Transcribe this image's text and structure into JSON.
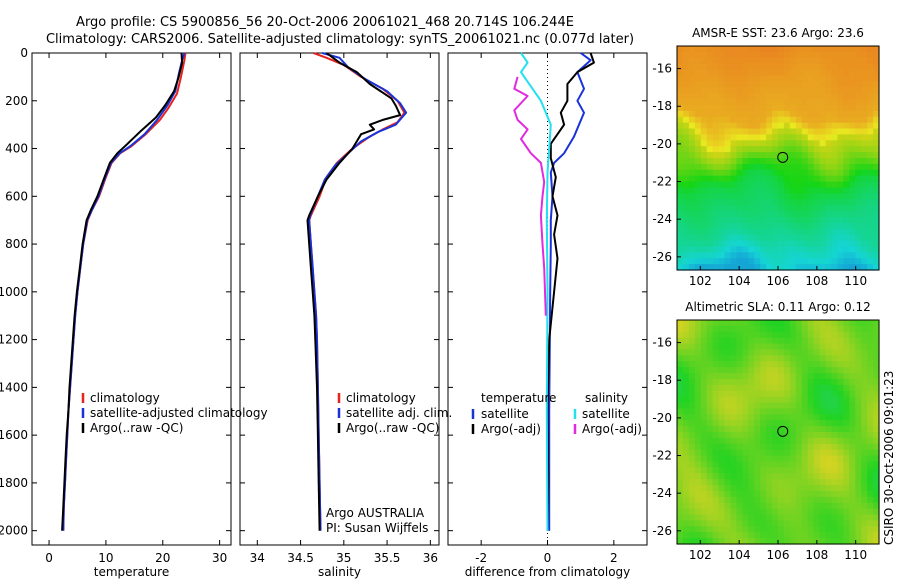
{
  "title_line1": "Argo profile: CS 5900856_56 20-Oct-2006 20061021_468 20.714S 106.244E",
  "title_line2": "Climatology: CARS2006. Satellite-adjusted climatology: synTS_20061021.nc (0.077d later)",
  "side_label": "CSIRO 30-Oct-2006 09:01:23",
  "colors": {
    "clim": "#e8231e",
    "sat": "#1a33d9",
    "argo": "#000000",
    "sal_sat": "#22e0ee",
    "sal_argo": "#e02be0"
  },
  "chart_data": [
    {
      "type": "line",
      "id": "temperature",
      "xlabel": "temperature",
      "xlim": [
        -3,
        32
      ],
      "ylim": [
        0,
        2060
      ],
      "y_reversed": true,
      "xticks": [
        0,
        10,
        20,
        30
      ],
      "xtick_labels": [
        "0",
        "10",
        "20",
        "30"
      ],
      "yticks": [
        0,
        200,
        400,
        600,
        800,
        1000,
        1200,
        1400,
        1600,
        1800,
        2000
      ],
      "ytick_labels": [
        "0",
        "200",
        "400",
        "600",
        "800",
        "1000",
        "1200",
        "1400",
        "1600",
        "1800",
        "2000"
      ],
      "legend": [
        "climatology",
        "satellite-adjusted climatology",
        "Argo(..raw -QC)"
      ],
      "series": [
        {
          "name": "climatology",
          "color_key": "clim",
          "points": [
            [
              24,
              0
            ],
            [
              23.8,
              30
            ],
            [
              23.2,
              100
            ],
            [
              22.5,
              170
            ],
            [
              21,
              230
            ],
            [
              19.5,
              280
            ],
            [
              17,
              340
            ],
            [
              14.5,
              390
            ],
            [
              12.5,
              420
            ],
            [
              11,
              460
            ],
            [
              10,
              520
            ],
            [
              8.8,
              600
            ],
            [
              7.5,
              660
            ],
            [
              6.8,
              700
            ],
            [
              6,
              800
            ],
            [
              5.5,
              900
            ],
            [
              5,
              1000
            ],
            [
              4.6,
              1100
            ],
            [
              4.3,
              1200
            ],
            [
              4,
              1300
            ],
            [
              3.7,
              1400
            ],
            [
              3.4,
              1500
            ],
            [
              3.2,
              1600
            ],
            [
              3,
              1700
            ],
            [
              2.8,
              1800
            ],
            [
              2.6,
              1900
            ],
            [
              2.5,
              2000
            ]
          ]
        },
        {
          "name": "satellite-adjusted climatology",
          "color_key": "sat",
          "points": [
            [
              23.8,
              0
            ],
            [
              23.4,
              30
            ],
            [
              22.8,
              90
            ],
            [
              22.2,
              160
            ],
            [
              20.8,
              220
            ],
            [
              19,
              280
            ],
            [
              16.8,
              340
            ],
            [
              14.3,
              390
            ],
            [
              12.4,
              420
            ],
            [
              10.9,
              460
            ],
            [
              9.9,
              520
            ],
            [
              8.7,
              600
            ],
            [
              7.5,
              660
            ],
            [
              6.7,
              700
            ],
            [
              6,
              800
            ],
            [
              5.5,
              900
            ],
            [
              5,
              1000
            ],
            [
              4.6,
              1100
            ],
            [
              4.3,
              1200
            ],
            [
              4,
              1300
            ],
            [
              3.7,
              1400
            ],
            [
              3.4,
              1500
            ],
            [
              3.2,
              1600
            ],
            [
              3,
              1700
            ],
            [
              2.8,
              1800
            ],
            [
              2.6,
              1900
            ],
            [
              2.5,
              2000
            ]
          ]
        },
        {
          "name": "Argo(..raw -QC)",
          "color_key": "argo",
          "points": [
            [
              23.3,
              0
            ],
            [
              23.4,
              40
            ],
            [
              22.8,
              100
            ],
            [
              22,
              160
            ],
            [
              20.4,
              220
            ],
            [
              18.8,
              270
            ],
            [
              16,
              330
            ],
            [
              13.8,
              380
            ],
            [
              12,
              420
            ],
            [
              10.7,
              460
            ],
            [
              9.6,
              530
            ],
            [
              8.5,
              600
            ],
            [
              7.3,
              660
            ],
            [
              6.6,
              700
            ],
            [
              5.9,
              800
            ],
            [
              5.4,
              900
            ],
            [
              4.9,
              1000
            ],
            [
              4.5,
              1100
            ],
            [
              4.2,
              1200
            ],
            [
              3.9,
              1300
            ],
            [
              3.6,
              1400
            ],
            [
              3.4,
              1500
            ],
            [
              3.1,
              1600
            ],
            [
              2.9,
              1700
            ],
            [
              2.7,
              1800
            ],
            [
              2.5,
              1900
            ],
            [
              2.3,
              2000
            ]
          ]
        }
      ]
    },
    {
      "type": "line",
      "id": "salinity",
      "xlabel": "salinity",
      "xlim": [
        33.8,
        36.1
      ],
      "ylim": [
        0,
        2060
      ],
      "y_reversed": true,
      "xticks": [
        34,
        34.5,
        35,
        35.5,
        36
      ],
      "xtick_labels": [
        "34",
        "34.5",
        "35",
        "35.5",
        "36"
      ],
      "legend": [
        "climatology",
        "satellite adj. clim.",
        "Argo(..raw -QC)"
      ],
      "annotations": [
        "Argo AUSTRALIA",
        "PI: Susan Wijffels"
      ],
      "series": [
        {
          "name": "climatology",
          "color_key": "clim",
          "points": [
            [
              34.65,
              0
            ],
            [
              34.8,
              20
            ],
            [
              35.0,
              50
            ],
            [
              35.2,
              100
            ],
            [
              35.45,
              150
            ],
            [
              35.62,
              200
            ],
            [
              35.7,
              250
            ],
            [
              35.62,
              290
            ],
            [
              35.45,
              320
            ],
            [
              35.3,
              350
            ],
            [
              35.1,
              400
            ],
            [
              34.92,
              460
            ],
            [
              34.8,
              520
            ],
            [
              34.72,
              600
            ],
            [
              34.62,
              680
            ],
            [
              34.6,
              700
            ],
            [
              34.62,
              800
            ],
            [
              34.64,
              900
            ],
            [
              34.66,
              1000
            ],
            [
              34.68,
              1100
            ],
            [
              34.69,
              1200
            ],
            [
              34.7,
              1400
            ],
            [
              34.71,
              1600
            ],
            [
              34.72,
              1800
            ],
            [
              34.73,
              2000
            ]
          ]
        },
        {
          "name": "satellite adj. clim.",
          "color_key": "sat",
          "points": [
            [
              34.75,
              0
            ],
            [
              34.95,
              20
            ],
            [
              35.05,
              60
            ],
            [
              35.25,
              110
            ],
            [
              35.5,
              160
            ],
            [
              35.65,
              210
            ],
            [
              35.72,
              250
            ],
            [
              35.6,
              300
            ],
            [
              35.4,
              330
            ],
            [
              35.2,
              370
            ],
            [
              35.05,
              420
            ],
            [
              34.9,
              470
            ],
            [
              34.78,
              530
            ],
            [
              34.7,
              600
            ],
            [
              34.61,
              680
            ],
            [
              34.6,
              700
            ],
            [
              34.62,
              800
            ],
            [
              34.64,
              900
            ],
            [
              34.66,
              1000
            ],
            [
              34.68,
              1100
            ],
            [
              34.69,
              1200
            ],
            [
              34.7,
              1400
            ],
            [
              34.71,
              1600
            ],
            [
              34.72,
              1800
            ],
            [
              34.73,
              2000
            ]
          ]
        },
        {
          "name": "Argo(..raw -QC)",
          "color_key": "argo",
          "points": [
            [
              34.8,
              0
            ],
            [
              34.95,
              40
            ],
            [
              35.15,
              80
            ],
            [
              35.3,
              130
            ],
            [
              35.55,
              190
            ],
            [
              35.6,
              220
            ],
            [
              35.65,
              260
            ],
            [
              35.45,
              280
            ],
            [
              35.3,
              300
            ],
            [
              35.35,
              320
            ],
            [
              35.2,
              340
            ],
            [
              35.1,
              400
            ],
            [
              34.95,
              460
            ],
            [
              34.8,
              530
            ],
            [
              34.7,
              600
            ],
            [
              34.6,
              680
            ],
            [
              34.58,
              700
            ],
            [
              34.6,
              800
            ],
            [
              34.62,
              900
            ],
            [
              34.64,
              1000
            ],
            [
              34.66,
              1100
            ],
            [
              34.67,
              1200
            ],
            [
              34.69,
              1400
            ],
            [
              34.7,
              1600
            ],
            [
              34.71,
              1800
            ],
            [
              34.72,
              2000
            ]
          ]
        }
      ]
    },
    {
      "type": "line",
      "id": "difference",
      "xlabel": "difference from climatology",
      "xlim": [
        -3,
        3
      ],
      "ylim": [
        0,
        2060
      ],
      "y_reversed": true,
      "xticks": [
        -2,
        0,
        2
      ],
      "xtick_labels": [
        "-2",
        "0",
        "2"
      ],
      "zero_line": 0,
      "legend_groups": [
        {
          "heading": "temperature",
          "items": [
            "satellite",
            "Argo(-adj)"
          ]
        },
        {
          "heading": "salinity",
          "items": [
            "satellite",
            "Argo(-adj)"
          ]
        }
      ],
      "series": [
        {
          "name": "temperature satellite",
          "color_key": "sat",
          "points": [
            [
              1,
              0
            ],
            [
              1.3,
              30
            ],
            [
              0.9,
              80
            ],
            [
              1.1,
              150
            ],
            [
              0.9,
              200
            ],
            [
              1.1,
              250
            ],
            [
              0.8,
              350
            ],
            [
              0.5,
              420
            ],
            [
              0.2,
              460
            ],
            [
              0.1,
              500
            ],
            [
              0.15,
              600
            ],
            [
              0.1,
              700
            ],
            [
              0.1,
              800
            ],
            [
              0.08,
              1000
            ],
            [
              0.05,
              1500
            ],
            [
              0.05,
              2000
            ]
          ]
        },
        {
          "name": "temperature Argo(-adj)",
          "color_key": "argo",
          "points": [
            [
              1.3,
              0
            ],
            [
              1.4,
              40
            ],
            [
              0.9,
              80
            ],
            [
              0.6,
              130
            ],
            [
              0.6,
              200
            ],
            [
              0.4,
              250
            ],
            [
              0.5,
              300
            ],
            [
              0.1,
              380
            ],
            [
              0.1,
              440
            ],
            [
              0.25,
              520
            ],
            [
              0.15,
              600
            ],
            [
              0.3,
              680
            ],
            [
              0.2,
              760
            ],
            [
              0.3,
              860
            ],
            [
              0.2,
              1000
            ],
            [
              0.05,
              1200
            ],
            [
              0,
              1500
            ],
            [
              0.02,
              1800
            ],
            [
              0,
              2000
            ]
          ]
        },
        {
          "name": "salinity satellite",
          "color_key": "sal_sat",
          "points": [
            [
              -0.8,
              0
            ],
            [
              -0.6,
              40
            ],
            [
              -0.8,
              80
            ],
            [
              -0.6,
              120
            ],
            [
              -0.2,
              200
            ],
            [
              0.1,
              300
            ],
            [
              0.05,
              400
            ],
            [
              0,
              500
            ],
            [
              -0.02,
              700
            ],
            [
              0,
              1000
            ],
            [
              -0.02,
              1500
            ],
            [
              0,
              2000
            ]
          ]
        },
        {
          "name": "salinity Argo(-adj)",
          "color_key": "sal_argo",
          "points": [
            [
              -0.9,
              100
            ],
            [
              -1.0,
              150
            ],
            [
              -0.6,
              180
            ],
            [
              -1.0,
              240
            ],
            [
              -0.9,
              280
            ],
            [
              -0.6,
              320
            ],
            [
              -0.8,
              360
            ],
            [
              -0.5,
              420
            ],
            [
              -0.2,
              460
            ],
            [
              -0.1,
              540
            ],
            [
              -0.15,
              600
            ],
            [
              -0.2,
              680
            ],
            [
              -0.15,
              800
            ],
            [
              -0.1,
              900
            ],
            [
              -0.05,
              1100
            ]
          ]
        }
      ]
    },
    {
      "type": "heatmap",
      "id": "sst",
      "title": "AMSR-E SST: 23.6 Argo: 23.6",
      "xlim": [
        100.8,
        111.2
      ],
      "ylim": [
        -26.7,
        -14.8
      ],
      "xticks": [
        102,
        104,
        106,
        108,
        110
      ],
      "xtick_labels": [
        "102",
        "104",
        "106",
        "108",
        "110"
      ],
      "yticks": [
        -16,
        -18,
        -20,
        -22,
        -24,
        -26
      ],
      "ytick_labels": [
        "-16",
        "-18",
        "-20",
        "-22",
        "-24",
        "-26"
      ],
      "marker": [
        106.244,
        -20.714
      ]
    },
    {
      "type": "heatmap",
      "id": "sla",
      "title": "Altimetric SLA: 0.11 Argo: 0.12",
      "xlim": [
        100.8,
        111.2
      ],
      "ylim": [
        -26.7,
        -14.8
      ],
      "xticks": [
        102,
        104,
        106,
        108,
        110
      ],
      "xtick_labels": [
        "102",
        "104",
        "106",
        "108",
        "110"
      ],
      "yticks": [
        -16,
        -18,
        -20,
        -22,
        -24,
        -26
      ],
      "ytick_labels": [
        "-16",
        "-18",
        "-20",
        "-22",
        "-24",
        "-26"
      ],
      "marker": [
        106.244,
        -20.714
      ]
    }
  ]
}
